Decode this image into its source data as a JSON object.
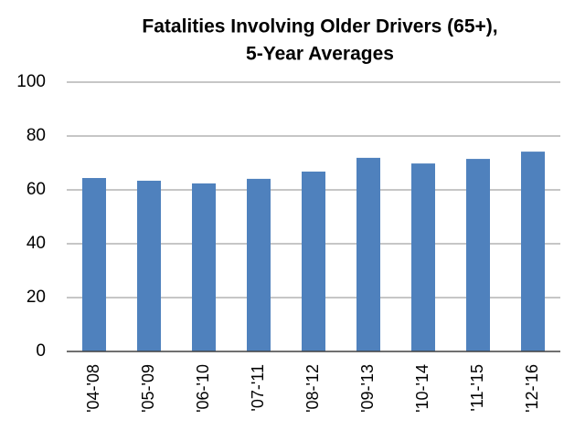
{
  "chart_data": {
    "type": "bar",
    "title": [
      "Fatalities Involving Older Drivers (65+),",
      "5-Year Averages"
    ],
    "categories": [
      "'04-'08",
      "'05-'09",
      "'06-'10",
      "'07-'11",
      "'08-'12",
      "'09-'13",
      "'10-'14",
      "'11-'15",
      "'12-'16"
    ],
    "values": [
      64.4,
      63.4,
      62.4,
      64.1,
      66.8,
      71.9,
      69.8,
      71.5,
      74.2
    ],
    "color": "#4f81bd",
    "ylim": [
      0,
      100
    ],
    "yticks": [
      0,
      20,
      40,
      60,
      80,
      100
    ],
    "grid": true
  }
}
